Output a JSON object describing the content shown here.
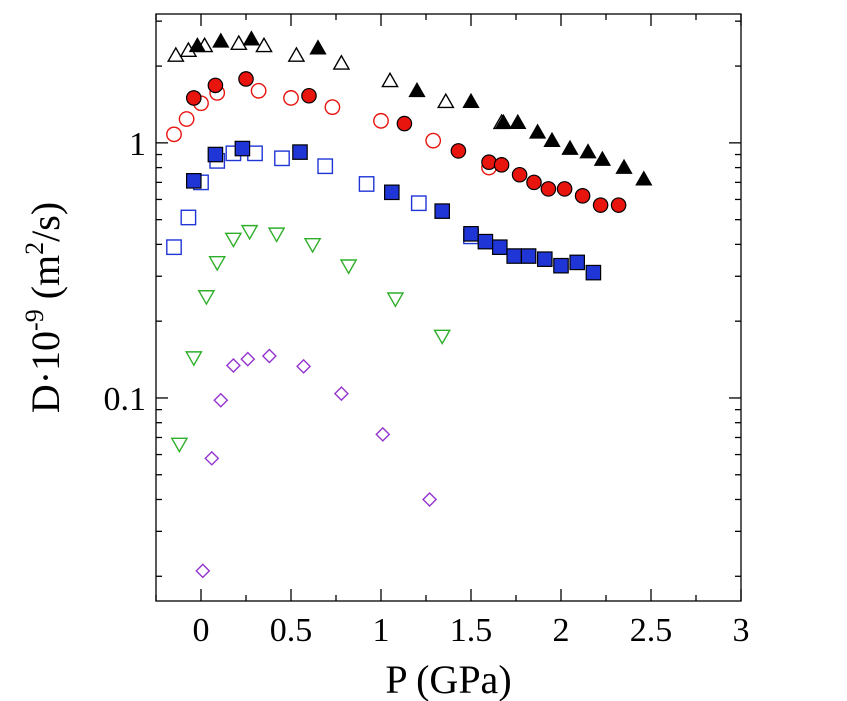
{
  "chart_data": {
    "type": "scatter",
    "title": "",
    "xlabel": "P (GPa)",
    "ylabel_main": "D·10",
    "ylabel_exp": "-9",
    "ylabel_units_open": " (m",
    "ylabel_units_exp": "2",
    "ylabel_units_close": "/s)",
    "xlim": [
      -0.25,
      3
    ],
    "ylim": [
      0.016,
      3.2
    ],
    "yscale": "log",
    "xticks": [
      {
        "value": 0,
        "label": "0"
      },
      {
        "value": 0.5,
        "label": "0.5"
      },
      {
        "value": 1,
        "label": "1"
      },
      {
        "value": 1.5,
        "label": "1.5"
      },
      {
        "value": 2,
        "label": "2"
      },
      {
        "value": 2.5,
        "label": "2.5"
      },
      {
        "value": 3,
        "label": "3"
      }
    ],
    "yticks": [
      {
        "value": 0.1,
        "label": "0.1"
      },
      {
        "value": 1,
        "label": "1"
      }
    ],
    "series": [
      {
        "name": "triangles-open",
        "marker": "triangle-up",
        "filled": false,
        "color": "#000000",
        "points": [
          [
            -0.14,
            2.2
          ],
          [
            -0.07,
            2.3
          ],
          [
            0.02,
            2.4
          ],
          [
            0.21,
            2.45
          ],
          [
            0.35,
            2.4
          ],
          [
            0.53,
            2.2
          ],
          [
            0.78,
            2.05
          ],
          [
            1.05,
            1.75
          ],
          [
            1.36,
            1.45
          ],
          [
            1.67,
            1.2
          ]
        ]
      },
      {
        "name": "triangles-filled",
        "marker": "triangle-up",
        "filled": true,
        "color": "#000000",
        "points": [
          [
            -0.02,
            2.4
          ],
          [
            0.11,
            2.5
          ],
          [
            0.28,
            2.55
          ],
          [
            0.65,
            2.35
          ],
          [
            1.2,
            1.6
          ],
          [
            1.5,
            1.45
          ],
          [
            1.68,
            1.2
          ],
          [
            1.76,
            1.2
          ],
          [
            1.87,
            1.1
          ],
          [
            1.95,
            1.02
          ],
          [
            2.05,
            0.95
          ],
          [
            2.15,
            0.92
          ],
          [
            2.23,
            0.86
          ],
          [
            2.35,
            0.8
          ],
          [
            2.46,
            0.72
          ]
        ]
      },
      {
        "name": "circles-open",
        "marker": "circle",
        "filled": false,
        "color": "#e8140e",
        "points": [
          [
            -0.15,
            1.08
          ],
          [
            -0.08,
            1.24
          ],
          [
            0.0,
            1.43
          ],
          [
            0.09,
            1.57
          ],
          [
            0.32,
            1.6
          ],
          [
            0.5,
            1.5
          ],
          [
            0.73,
            1.38
          ],
          [
            1.0,
            1.22
          ],
          [
            1.29,
            1.02
          ],
          [
            1.6,
            0.8
          ]
        ]
      },
      {
        "name": "circles-filled",
        "marker": "circle",
        "filled": true,
        "color": "#e8140e",
        "points": [
          [
            -0.04,
            1.5
          ],
          [
            0.08,
            1.68
          ],
          [
            0.25,
            1.78
          ],
          [
            0.6,
            1.53
          ],
          [
            1.13,
            1.19
          ],
          [
            1.43,
            0.93
          ],
          [
            1.6,
            0.84
          ],
          [
            1.67,
            0.82
          ],
          [
            1.77,
            0.75
          ],
          [
            1.85,
            0.7
          ],
          [
            1.93,
            0.66
          ],
          [
            2.02,
            0.66
          ],
          [
            2.12,
            0.62
          ],
          [
            2.22,
            0.57
          ],
          [
            2.32,
            0.57
          ]
        ]
      },
      {
        "name": "squares-open",
        "marker": "square",
        "filled": false,
        "color": "#1f35d6",
        "points": [
          [
            -0.15,
            0.39
          ],
          [
            -0.07,
            0.51
          ],
          [
            0.0,
            0.7
          ],
          [
            0.09,
            0.85
          ],
          [
            0.18,
            0.91
          ],
          [
            0.3,
            0.91
          ],
          [
            0.45,
            0.87
          ],
          [
            0.69,
            0.81
          ],
          [
            0.92,
            0.69
          ],
          [
            1.21,
            0.58
          ],
          [
            1.5,
            0.43
          ]
        ]
      },
      {
        "name": "squares-filled",
        "marker": "square",
        "filled": true,
        "color": "#1f35d6",
        "points": [
          [
            -0.04,
            0.71
          ],
          [
            0.08,
            0.9
          ],
          [
            0.23,
            0.95
          ],
          [
            0.55,
            0.92
          ],
          [
            1.06,
            0.64
          ],
          [
            1.34,
            0.54
          ],
          [
            1.5,
            0.44
          ],
          [
            1.58,
            0.41
          ],
          [
            1.66,
            0.39
          ],
          [
            1.74,
            0.36
          ],
          [
            1.82,
            0.36
          ],
          [
            1.91,
            0.35
          ],
          [
            2.0,
            0.33
          ],
          [
            2.09,
            0.34
          ],
          [
            2.18,
            0.31
          ]
        ]
      },
      {
        "name": "triangles-down-open",
        "marker": "triangle-down",
        "filled": false,
        "color": "#2fae2a",
        "points": [
          [
            -0.12,
            0.066
          ],
          [
            -0.04,
            0.144
          ],
          [
            0.03,
            0.25
          ],
          [
            0.09,
            0.34
          ],
          [
            0.18,
            0.42
          ],
          [
            0.27,
            0.45
          ],
          [
            0.42,
            0.44
          ],
          [
            0.62,
            0.4
          ],
          [
            0.82,
            0.33
          ],
          [
            1.08,
            0.245
          ],
          [
            1.34,
            0.175
          ]
        ]
      },
      {
        "name": "diamonds-open",
        "marker": "diamond",
        "filled": false,
        "color": "#9434d0",
        "points": [
          [
            0.01,
            0.021
          ],
          [
            0.06,
            0.058
          ],
          [
            0.11,
            0.098
          ],
          [
            0.18,
            0.134
          ],
          [
            0.26,
            0.142
          ],
          [
            0.38,
            0.146
          ],
          [
            0.57,
            0.133
          ],
          [
            0.78,
            0.104
          ],
          [
            1.01,
            0.072
          ],
          [
            1.27,
            0.04
          ]
        ]
      }
    ]
  }
}
